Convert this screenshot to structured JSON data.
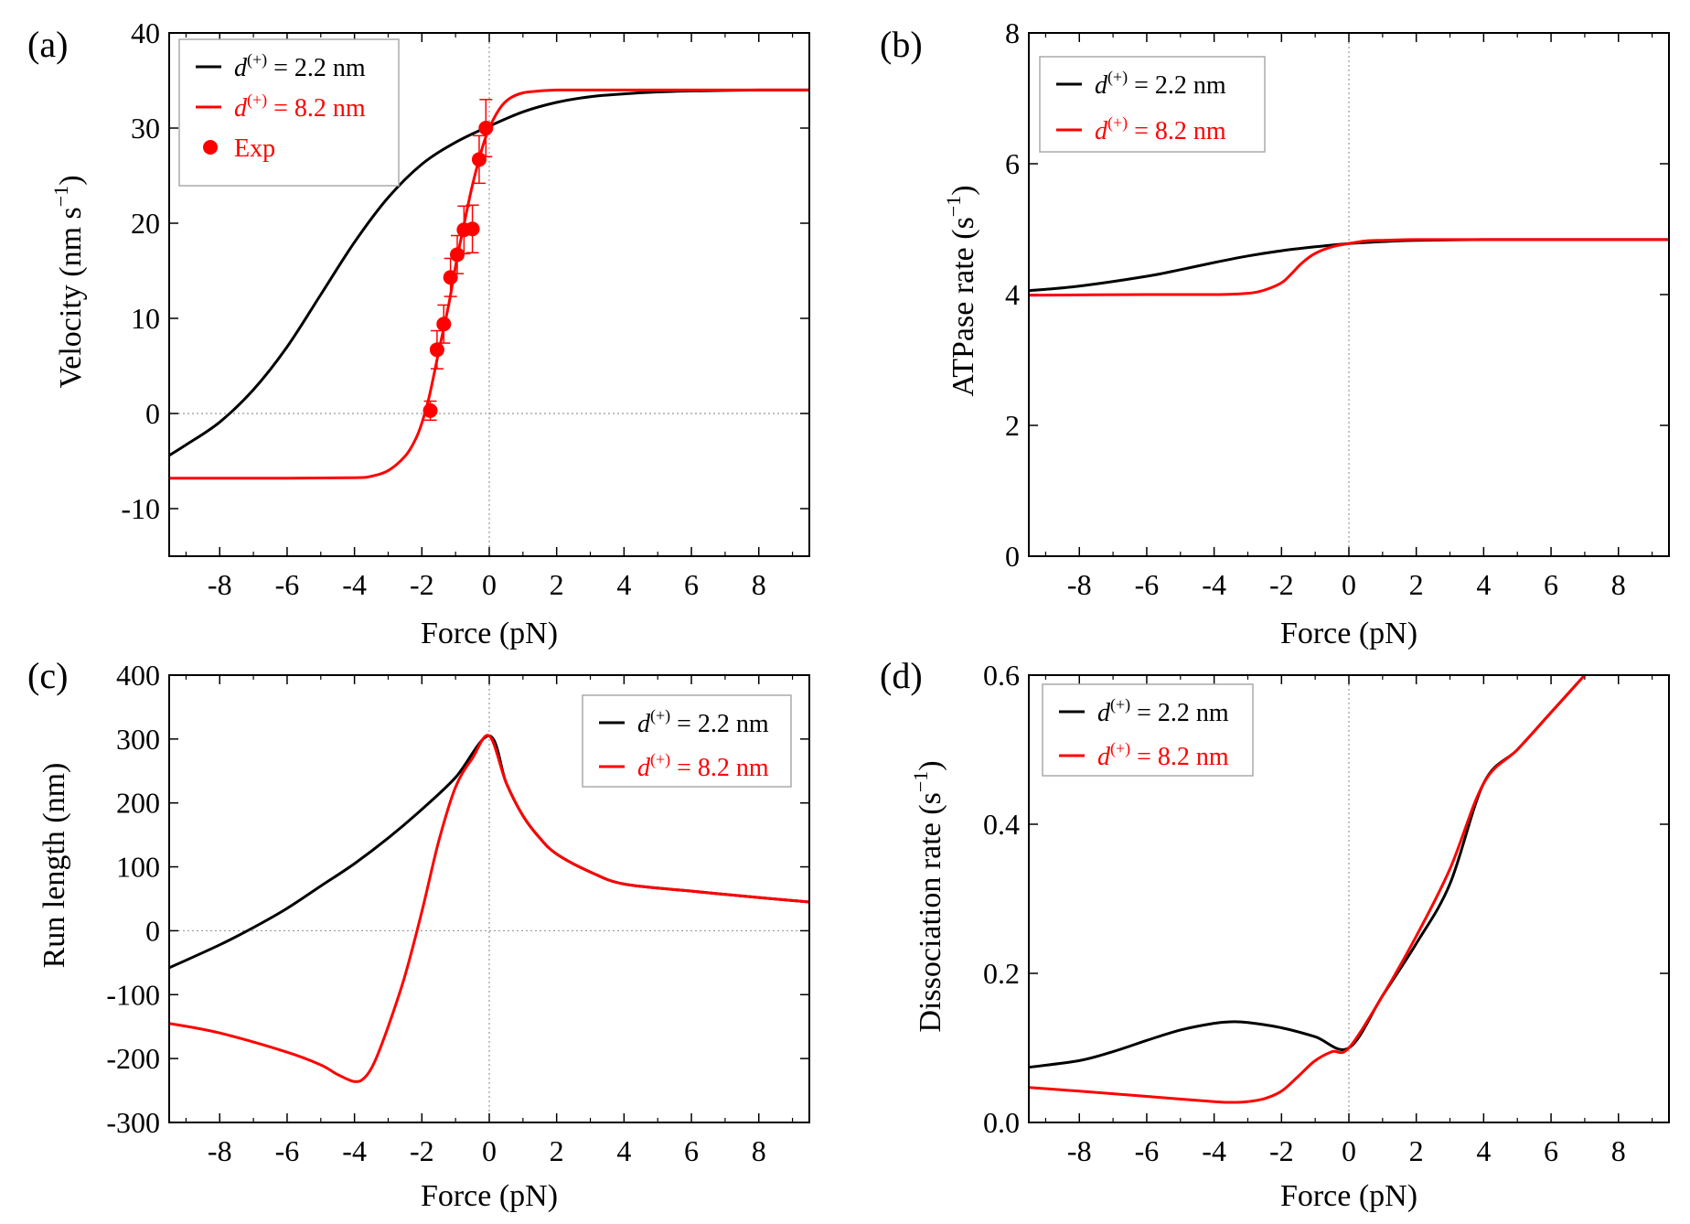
{
  "colors": {
    "black": "#000000",
    "red": "#ff0000",
    "ref_line": "#999999",
    "legend_border": "#aaaaaa"
  },
  "chart_data": [
    {
      "type": "line",
      "panel_label": "(a)",
      "xlabel": "Force (pN)",
      "ylabel_main": "Velocity (nm s",
      "ylabel_sup": "−1",
      "ylabel_tail": ")",
      "xlim": [
        -9.5,
        9.5
      ],
      "ylim": [
        -15,
        40
      ],
      "xticks": [
        -8,
        -6,
        -4,
        -2,
        0,
        2,
        4,
        6,
        8
      ],
      "xtick_labels": [
        "-8",
        "-6",
        "-4",
        "-2",
        "0",
        "2",
        "4",
        "6",
        "8"
      ],
      "yticks": [
        -10,
        0,
        10,
        20,
        30,
        40
      ],
      "ytick_labels": [
        "-10",
        "0",
        "10",
        "20",
        "30",
        "40"
      ],
      "legend": [
        {
          "sym": "d",
          "sup": "(+)",
          "rest": " = 2.2 nm",
          "color": "#000000",
          "kind": "line"
        },
        {
          "sym": "d",
          "sup": "(+)",
          "rest": " = 8.2 nm",
          "color": "#ff0000",
          "kind": "line"
        },
        {
          "sym": "",
          "sup": "",
          "rest": "Exp",
          "color": "#ff0000",
          "kind": "dot"
        }
      ],
      "series": [
        {
          "name": "d(+) = 2.2 nm",
          "color": "#000000",
          "x": [
            -9.5,
            -9,
            -8,
            -7,
            -6,
            -5,
            -4,
            -3,
            -2,
            -1,
            0,
            1,
            2,
            3,
            4,
            5,
            6,
            7,
            8,
            9,
            9.5
          ],
          "y": [
            -4.4,
            -3.3,
            -0.9,
            2.5,
            7.0,
            12.5,
            18.0,
            22.7,
            26.2,
            28.5,
            30.2,
            31.7,
            32.7,
            33.3,
            33.6,
            33.8,
            33.9,
            33.95,
            34.0,
            34.0,
            34.0
          ]
        },
        {
          "name": "d(+) = 8.2 nm",
          "color": "#ff0000",
          "x": [
            -9.5,
            -6,
            -4,
            -3.5,
            -3,
            -2.5,
            -2.2,
            -2,
            -1.8,
            -1.5,
            -1.2,
            -1,
            -0.8,
            -0.5,
            -0.2,
            0,
            0.3,
            0.6,
            1,
            1.5,
            2,
            3,
            4,
            6,
            9.5
          ],
          "y": [
            -6.8,
            -6.8,
            -6.75,
            -6.6,
            -6.0,
            -4.5,
            -2.8,
            -1.0,
            1.5,
            6.5,
            11.5,
            15.5,
            19.0,
            24.0,
            28.0,
            30.0,
            32.0,
            33.1,
            33.7,
            33.9,
            34.0,
            34.0,
            34.0,
            34.0,
            34.0
          ]
        }
      ],
      "points": {
        "name": "Exp",
        "x": [
          -1.75,
          -1.55,
          -1.35,
          -1.15,
          -0.95,
          -0.75,
          -0.5,
          -0.3,
          -0.1
        ],
        "y": [
          0.3,
          6.7,
          9.4,
          14.3,
          16.7,
          19.3,
          19.4,
          26.7,
          30.0
        ],
        "err": [
          1.0,
          2.0,
          2.0,
          2.0,
          2.0,
          2.5,
          2.5,
          2.5,
          3.0
        ]
      }
    },
    {
      "type": "line",
      "panel_label": "(b)",
      "xlabel": "Force (pN)",
      "ylabel_main": "ATPase rate (s",
      "ylabel_sup": "−1",
      "ylabel_tail": ")",
      "xlim": [
        -9.5,
        9.5
      ],
      "ylim": [
        0,
        8
      ],
      "xticks": [
        -8,
        -6,
        -4,
        -2,
        0,
        2,
        4,
        6,
        8
      ],
      "xtick_labels": [
        "-8",
        "-6",
        "-4",
        "-2",
        "0",
        "2",
        "4",
        "6",
        "8"
      ],
      "yticks": [
        0,
        2,
        4,
        6,
        8
      ],
      "ytick_labels": [
        "0",
        "2",
        "4",
        "6",
        "8"
      ],
      "legend": [
        {
          "sym": "d",
          "sup": "(+)",
          "rest": " = 2.2 nm",
          "color": "#000000",
          "kind": "line"
        },
        {
          "sym": "d",
          "sup": "(+)",
          "rest": " = 8.2 nm",
          "color": "#ff0000",
          "kind": "line"
        }
      ],
      "series": [
        {
          "name": "d(+) = 2.2 nm",
          "color": "#000000",
          "x": [
            -9.5,
            -8,
            -6,
            -5,
            -4,
            -3,
            -2,
            -1,
            0,
            1,
            2,
            4,
            6,
            9.5
          ],
          "y": [
            4.06,
            4.13,
            4.28,
            4.38,
            4.49,
            4.59,
            4.67,
            4.73,
            4.78,
            4.81,
            4.83,
            4.84,
            4.84,
            4.84
          ]
        },
        {
          "name": "d(+) = 8.2 nm",
          "color": "#ff0000",
          "x": [
            -9.5,
            -6,
            -4,
            -3,
            -2.5,
            -2,
            -1.7,
            -1.4,
            -1,
            -0.5,
            0,
            0.5,
            1,
            2,
            4,
            9.5
          ],
          "y": [
            3.99,
            4.0,
            4.0,
            4.02,
            4.07,
            4.18,
            4.32,
            4.48,
            4.63,
            4.73,
            4.78,
            4.82,
            4.83,
            4.84,
            4.84,
            4.84
          ]
        }
      ]
    },
    {
      "type": "line",
      "panel_label": "(c)",
      "xlabel": "Force (pN)",
      "ylabel_main": "Run length (nm)",
      "ylabel_sup": "",
      "ylabel_tail": "",
      "xlim": [
        -9.5,
        9.5
      ],
      "ylim": [
        -300,
        400
      ],
      "xticks": [
        -8,
        -6,
        -4,
        -2,
        0,
        2,
        4,
        6,
        8
      ],
      "xtick_labels": [
        "-8",
        "-6",
        "-4",
        "-2",
        "0",
        "2",
        "4",
        "6",
        "8"
      ],
      "yticks": [
        -300,
        -200,
        -100,
        0,
        100,
        200,
        300,
        400
      ],
      "ytick_labels": [
        "-300",
        "-200",
        "-100",
        "0",
        "100",
        "200",
        "300",
        "400"
      ],
      "legend": [
        {
          "sym": "d",
          "sup": "(+)",
          "rest": " = 2.2 nm",
          "color": "#000000",
          "kind": "line"
        },
        {
          "sym": "d",
          "sup": "(+)",
          "rest": " = 8.2 nm",
          "color": "#ff0000",
          "kind": "line"
        }
      ],
      "series": [
        {
          "name": "d(+) = 2.2 nm",
          "color": "#000000",
          "x": [
            -9.5,
            -8,
            -7,
            -6,
            -5,
            -4,
            -3,
            -2,
            -1,
            0,
            0.5,
            1,
            1.5,
            2,
            3,
            4,
            6,
            8,
            9.5
          ],
          "y": [
            -58,
            -22,
            5,
            35,
            70,
            105,
            145,
            190,
            240,
            305,
            232,
            180,
            145,
            120,
            92,
            73,
            62,
            52,
            45
          ]
        },
        {
          "name": "d(+) = 8.2 nm",
          "color": "#ff0000",
          "x": [
            -9.5,
            -8,
            -6,
            -5,
            -4.5,
            -4,
            -3.7,
            -3.4,
            -3,
            -2.5,
            -2,
            -1.5,
            -1,
            -0.5,
            0,
            0.5,
            1,
            1.5,
            2,
            3,
            4,
            6,
            8,
            9.5
          ],
          "y": [
            -145,
            -160,
            -190,
            -210,
            -225,
            -236,
            -230,
            -205,
            -150,
            -70,
            30,
            140,
            225,
            270,
            305,
            232,
            180,
            145,
            120,
            92,
            73,
            62,
            52,
            45
          ]
        }
      ]
    },
    {
      "type": "line",
      "panel_label": "(d)",
      "xlabel": "Force (pN)",
      "ylabel_main": "Dissociation rate (s",
      "ylabel_sup": "−1",
      "ylabel_tail": ")",
      "xlim": [
        -9.5,
        9.5
      ],
      "ylim": [
        0,
        0.6
      ],
      "xticks": [
        -8,
        -6,
        -4,
        -2,
        0,
        2,
        4,
        6,
        8
      ],
      "xtick_labels": [
        "-8",
        "-6",
        "-4",
        "-2",
        "0",
        "2",
        "4",
        "6",
        "8"
      ],
      "yticks": [
        0.0,
        0.2,
        0.4,
        0.6
      ],
      "ytick_labels": [
        "0.0",
        "0.2",
        "0.4",
        "0.6"
      ],
      "legend": [
        {
          "sym": "d",
          "sup": "(+)",
          "rest": " = 2.2 nm",
          "color": "#000000",
          "kind": "line"
        },
        {
          "sym": "d",
          "sup": "(+)",
          "rest": " = 8.2 nm",
          "color": "#ff0000",
          "kind": "line"
        }
      ],
      "series": [
        {
          "name": "d(+) = 2.2 nm",
          "color": "#000000",
          "x": [
            -9.5,
            -8,
            -7,
            -6,
            -5,
            -4,
            -3.5,
            -3,
            -2,
            -1,
            0,
            1,
            2,
            3,
            4,
            5,
            6,
            7
          ],
          "y": [
            0.074,
            0.083,
            0.095,
            0.11,
            0.124,
            0.133,
            0.135,
            0.134,
            0.127,
            0.115,
            0.1,
            0.17,
            0.24,
            0.32,
            0.455,
            0.5,
            0.55,
            0.6
          ]
        },
        {
          "name": "d(+) = 8.2 nm",
          "color": "#ff0000",
          "x": [
            -9.5,
            -8,
            -6,
            -4,
            -3.5,
            -3,
            -2.5,
            -2,
            -1.5,
            -1,
            -0.5,
            0,
            1,
            2,
            3,
            4,
            5,
            6,
            7
          ],
          "y": [
            0.047,
            0.042,
            0.035,
            0.028,
            0.027,
            0.028,
            0.032,
            0.042,
            0.062,
            0.083,
            0.095,
            0.1,
            0.17,
            0.25,
            0.34,
            0.455,
            0.5,
            0.55,
            0.6
          ]
        }
      ]
    }
  ]
}
